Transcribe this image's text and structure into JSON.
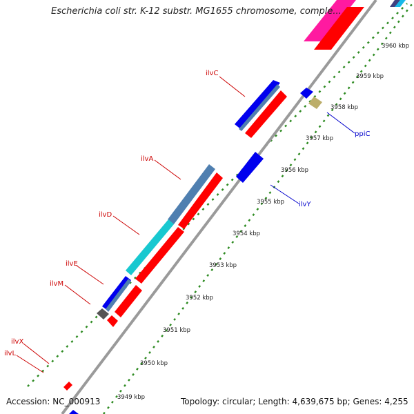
{
  "header": {
    "title": "Escherichia coli str. K-12 substr. MG1655 chromosome, comple..."
  },
  "footer": {
    "accession": "Accession: NC_000913",
    "info": "Topology: circular; Length: 4,639,675 bp; Genes: 4,255"
  },
  "colors": {
    "backbone": "#9a9a9a",
    "tick": "#2e8b22",
    "forward_label": "#cc0000",
    "reverse_label": "#0000cc",
    "gene_red": "#ff0000",
    "gene_blue": "#0000ee",
    "gene_steel": "#4f7fb0",
    "gene_cyan": "#18c8d0",
    "gene_magenta": "#ff1aa0",
    "gene_gray": "#555555",
    "gene_khaki": "#bcae6a"
  },
  "scale_labels": [
    "3949 kbp",
    "3950 kbp",
    "3951 kbp",
    "3952 kbp",
    "3953 kbp",
    "3954 kbp",
    "3955 kbp",
    "3956 kbp",
    "3957 kbp",
    "3958 kbp",
    "3959 kbp",
    "3960 kbp"
  ],
  "gene_labels": [
    {
      "text": "ilvC",
      "strand": "forward"
    },
    {
      "text": "ilvA",
      "strand": "forward"
    },
    {
      "text": "ilvD",
      "strand": "forward"
    },
    {
      "text": "ilvE",
      "strand": "forward"
    },
    {
      "text": "ilvM",
      "strand": "forward"
    },
    {
      "text": "ilvX",
      "strand": "forward"
    },
    {
      "text": "ilvL",
      "strand": "forward"
    },
    {
      "text": "ppiC",
      "strand": "reverse"
    },
    {
      "text": "ilvY",
      "strand": "reverse"
    }
  ]
}
